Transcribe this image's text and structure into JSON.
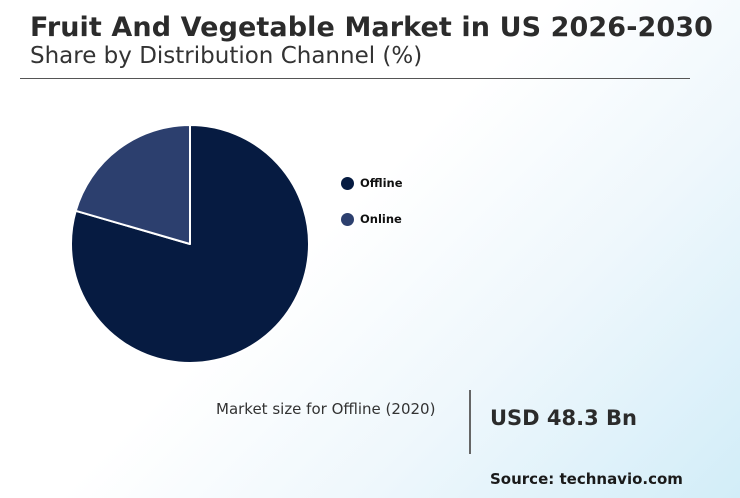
{
  "header": {
    "title": "Fruit And Vegetable Market in US 2026-2030",
    "subtitle": "Share by Distribution Channel (%)"
  },
  "chart_data": {
    "type": "pie",
    "title": "Share by Distribution Channel (%)",
    "categories": [
      "Offline",
      "Online"
    ],
    "values": [
      79.5,
      20.5
    ],
    "colors": [
      "#061b41",
      "#2c3f6e"
    ],
    "legend_position": "right"
  },
  "footer": {
    "market_label": "Market size for Offline (2020)",
    "market_value": "USD 48.3 Bn",
    "source": "Source: technavio.com"
  }
}
